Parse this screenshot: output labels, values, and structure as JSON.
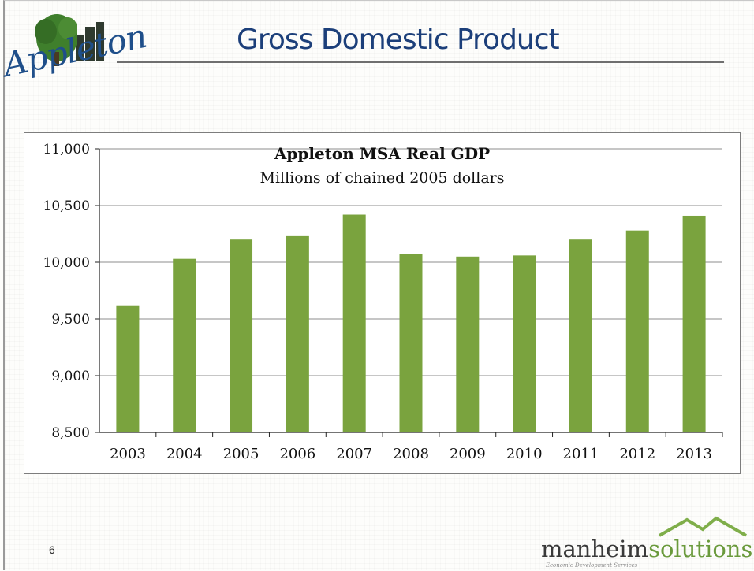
{
  "slide": {
    "title": "Gross Domestic Product",
    "page_number": "6",
    "logo_text": "Appleton",
    "brand": {
      "name_part1": "manheim",
      "name_part2": "solutions",
      "tagline": "Economic Development Services",
      "color_part1": "#3a3a3a",
      "color_part2": "#6a9a3c"
    }
  },
  "colors": {
    "bar": "#7aa33e",
    "title": "#1c3f7a",
    "grid": "#8c8c8c"
  },
  "chart_data": {
    "type": "bar",
    "title": "Appleton MSA Real GDP",
    "subtitle": "Millions of chained 2005 dollars",
    "categories": [
      "2003",
      "2004",
      "2005",
      "2006",
      "2007",
      "2008",
      "2009",
      "2010",
      "2011",
      "2012",
      "2013"
    ],
    "values": [
      9620,
      10030,
      10200,
      10230,
      10420,
      10070,
      10050,
      10060,
      10200,
      10280,
      10410
    ],
    "ylim": [
      8500,
      11000
    ],
    "yticks": [
      8500,
      9000,
      9500,
      10000,
      10500,
      11000
    ],
    "ytick_labels": [
      "8,500",
      "9,000",
      "9,500",
      "10,000",
      "10,500",
      "11,000"
    ],
    "xlabel": "",
    "ylabel": "",
    "grid": true,
    "legend": "none"
  }
}
